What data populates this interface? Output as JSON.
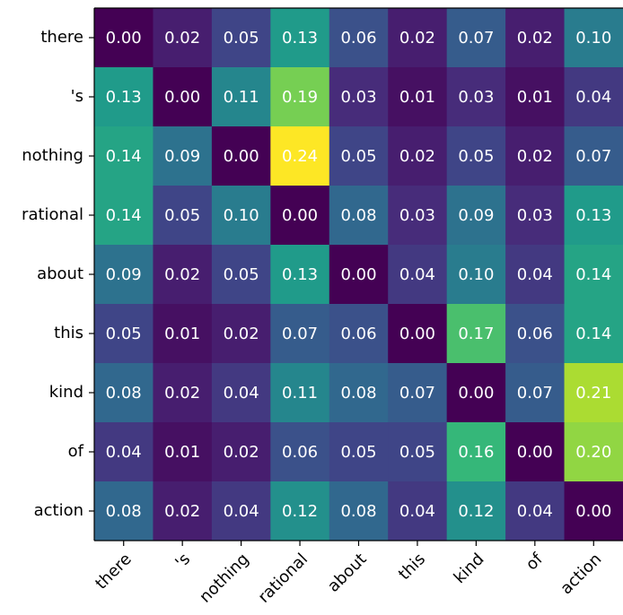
{
  "chart_data": {
    "type": "heatmap",
    "colormap": "viridis",
    "x_categories": [
      "there",
      "'s",
      "nothing",
      "rational",
      "about",
      "this",
      "kind",
      "of",
      "action"
    ],
    "y_categories": [
      "there",
      "'s",
      "nothing",
      "rational",
      "about",
      "this",
      "kind",
      "of",
      "action"
    ],
    "values": [
      [
        0,
        0.02,
        0.05,
        0.13,
        0.06,
        0.02,
        0.07,
        0.02,
        0.1
      ],
      [
        0.13,
        0,
        0.11,
        0.19,
        0.03,
        0.01,
        0.03,
        0.01,
        0.04
      ],
      [
        0.14,
        0.09,
        0,
        0.24,
        0.05,
        0.02,
        0.05,
        0.02,
        0.07
      ],
      [
        0.14,
        0.05,
        0.1,
        0,
        0.08,
        0.03,
        0.09,
        0.03,
        0.13
      ],
      [
        0.09,
        0.02,
        0.05,
        0.13,
        0,
        0.04,
        0.1,
        0.04,
        0.14
      ],
      [
        0.05,
        0.01,
        0.02,
        0.07,
        0.06,
        0,
        0.17,
        0.06,
        0.14
      ],
      [
        0.08,
        0.02,
        0.04,
        0.11,
        0.08,
        0.07,
        0,
        0.07,
        0.21
      ],
      [
        0.04,
        0.01,
        0.02,
        0.06,
        0.05,
        0.05,
        0.16,
        0,
        0.2
      ],
      [
        0.08,
        0.02,
        0.04,
        0.12,
        0.08,
        0.04,
        0.12,
        0.04,
        0
      ]
    ],
    "value_labels": [
      [
        "0.00",
        "0.02",
        "0.05",
        "0.13",
        "0.06",
        "0.02",
        "0.07",
        "0.02",
        "0.10"
      ],
      [
        "0.13",
        "0.00",
        "0.11",
        "0.19",
        "0.03",
        "0.01",
        "0.03",
        "0.01",
        "0.04"
      ],
      [
        "0.14",
        "0.09",
        "0.00",
        "0.24",
        "0.05",
        "0.02",
        "0.05",
        "0.02",
        "0.07"
      ],
      [
        "0.14",
        "0.05",
        "0.10",
        "0.00",
        "0.08",
        "0.03",
        "0.09",
        "0.03",
        "0.13"
      ],
      [
        "0.09",
        "0.02",
        "0.05",
        "0.13",
        "0.00",
        "0.04",
        "0.10",
        "0.04",
        "0.14"
      ],
      [
        "0.05",
        "0.01",
        "0.02",
        "0.07",
        "0.06",
        "0.00",
        "0.17",
        "0.06",
        "0.14"
      ],
      [
        "0.08",
        "0.02",
        "0.04",
        "0.11",
        "0.08",
        "0.07",
        "0.00",
        "0.07",
        "0.21"
      ],
      [
        "0.04",
        "0.01",
        "0.02",
        "0.06",
        "0.05",
        "0.05",
        "0.16",
        "0.00",
        "0.20"
      ],
      [
        "0.08",
        "0.02",
        "0.04",
        "0.12",
        "0.08",
        "0.04",
        "0.12",
        "0.04",
        "0.00"
      ]
    ]
  }
}
